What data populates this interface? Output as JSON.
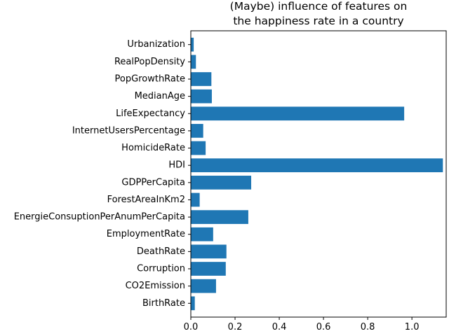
{
  "chart_data": {
    "type": "bar",
    "orientation": "horizontal",
    "title_lines": [
      "(Maybe) influence of features on",
      "the happiness rate in a country"
    ],
    "categories": [
      "BirthRate",
      "CO2Emission",
      "Corruption",
      "DeathRate",
      "EmploymentRate",
      "EnergieConsuptionPerAnumPerCapita",
      "ForestAreaInKm2",
      "GDPPerCapita",
      "HDI",
      "HomicideRate",
      "InternetUsersPercentage",
      "LifeExpectancy",
      "MedianAge",
      "PopGrowthRate",
      "RealPopDensity",
      "Urbanization"
    ],
    "values": [
      0.018,
      0.114,
      0.158,
      0.161,
      0.101,
      0.26,
      0.04,
      0.273,
      1.14,
      0.067,
      0.056,
      0.965,
      0.095,
      0.093,
      0.023,
      0.013
    ],
    "xlim": [
      0,
      1.155
    ],
    "xticks": [
      0.0,
      0.2,
      0.4,
      0.6,
      0.8,
      1.0
    ],
    "xtick_labels": [
      "0.0",
      "0.2",
      "0.4",
      "0.6",
      "0.8",
      "1.0"
    ],
    "bar_color": "#1f77b4",
    "grid": false,
    "legend": "none"
  }
}
